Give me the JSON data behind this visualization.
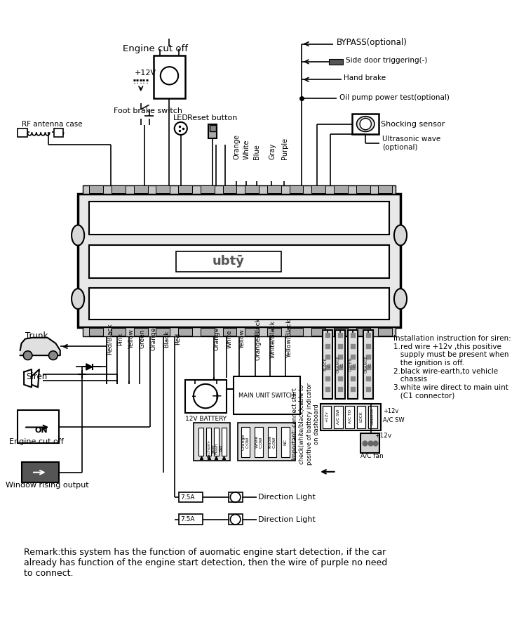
{
  "bg_color": "#ffffff",
  "remark_text": "Remark:this system has the function of auomatic engine start detection, if the car\nalready has function of the engine start detection, then the wire of purple no need\nto connect.",
  "top_labels": {
    "engine_cut_off": "Engine cut off",
    "foot_brake": "Foot brake switch",
    "led": "LED",
    "reset": "Reset button",
    "rf_antenna": "RF antenna case",
    "bypass": "BYPASS(optional)",
    "side_door": "Side door triggering(-)",
    "hand_brake": "Hand brake",
    "oil_pump": "Oil pump power test(optional)",
    "shocking": "Shocking sensor",
    "ultrasonic": "Ultrasonic wave\n(optional)"
  },
  "wire_labels_top": [
    "Orange",
    "White",
    "Blue",
    "Gray",
    "Purple"
  ],
  "wire_labels_bottom_left": [
    "Red/Black",
    "Pink",
    "Yellow",
    "Green",
    "Orange",
    "Black",
    "Red"
  ],
  "wire_labels_bottom_right": [
    "Orange",
    "White",
    "Yellow",
    "Orange/Black",
    "White/Black",
    "Yellow/Black"
  ],
  "siren_instruction": "Installation instruction for siren:\n1.red wire +12v ,this positive\n   supply must be present when\n   the ignition is off.\n2.black wire-earth,to vehicle\n   chassis\n3.white wire direct to main uint\n   (C1 connector)",
  "important_text": "Important: connect start\ncheck(white/black)cable to\npositive of battery indicator\non dashboard",
  "bottom_labels": {
    "trunk": "Trunk",
    "siren": "Siren",
    "engine_cut_off": "Engine cut off",
    "window": "Window rising output",
    "direction1": "Direction Light",
    "direction2": "Direction Light"
  }
}
